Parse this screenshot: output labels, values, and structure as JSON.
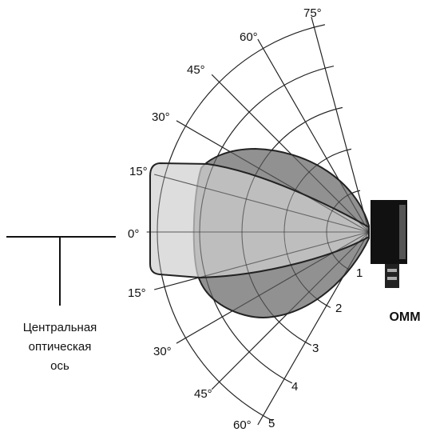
{
  "angle_labels_top": [
    "75°",
    "60°",
    "45°",
    "30°",
    "15°"
  ],
  "axis_angle_label": "0°",
  "angle_labels_bottom": [
    "15°",
    "30°",
    "45°",
    "60°"
  ],
  "range_labels": [
    "1",
    "2",
    "3",
    "4",
    "5"
  ],
  "axis_caption": [
    "Центральная",
    "оптическая",
    "ось"
  ],
  "device_label": "OMM"
}
